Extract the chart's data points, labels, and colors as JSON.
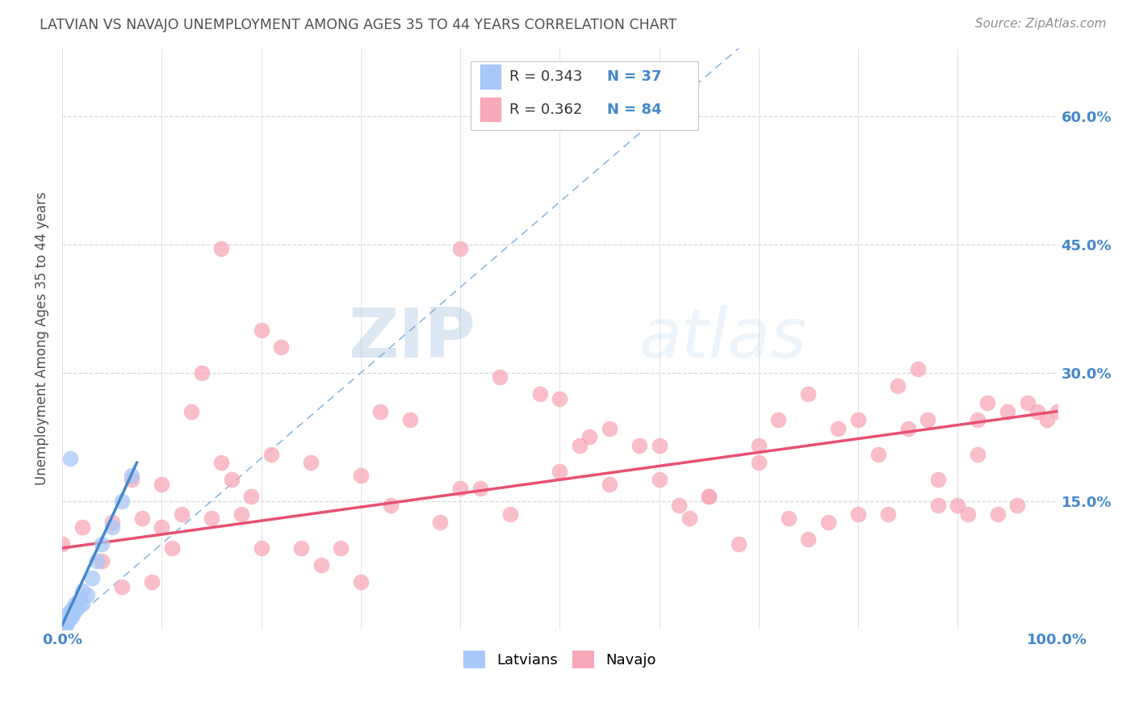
{
  "title": "LATVIAN VS NAVAJO UNEMPLOYMENT AMONG AGES 35 TO 44 YEARS CORRELATION CHART",
  "source": "Source: ZipAtlas.com",
  "ylabel": "Unemployment Among Ages 35 to 44 years",
  "xlim": [
    0,
    1.0
  ],
  "ylim": [
    0,
    0.68
  ],
  "xtick_positions": [
    0.0,
    0.1,
    0.2,
    0.3,
    0.4,
    0.5,
    0.6,
    0.7,
    0.8,
    0.9,
    1.0
  ],
  "ytick_positions": [
    0.0,
    0.15,
    0.3,
    0.45,
    0.6
  ],
  "latvian_R": 0.343,
  "latvian_N": 37,
  "navajo_R": 0.362,
  "navajo_N": 84,
  "latvian_color": "#a8c8f8",
  "navajo_color": "#f8a8b8",
  "latvian_line_color": "#4488cc",
  "navajo_line_color": "#e85070",
  "diag_color": "#b8c8e0",
  "legend_latvian_label": "Latvians",
  "legend_navajo_label": "Navajo",
  "watermark_zip": "ZIP",
  "watermark_atlas": "atlas",
  "background_color": "#ffffff",
  "grid_color": "#d8d8d8",
  "title_color": "#505050",
  "ylabel_color": "#505050",
  "tick_label_color": "#4488cc",
  "latvian_scatter_x": [
    0.0,
    0.0,
    0.0,
    0.001,
    0.001,
    0.002,
    0.002,
    0.003,
    0.003,
    0.004,
    0.004,
    0.005,
    0.005,
    0.005,
    0.006,
    0.006,
    0.007,
    0.008,
    0.009,
    0.01,
    0.01,
    0.011,
    0.012,
    0.013,
    0.015,
    0.018,
    0.02,
    0.025,
    0.03,
    0.035,
    0.04,
    0.05,
    0.06,
    0.07,
    0.02,
    0.008,
    0.003
  ],
  "latvian_scatter_y": [
    0.0,
    0.003,
    0.006,
    0.002,
    0.008,
    0.004,
    0.01,
    0.005,
    0.012,
    0.006,
    0.015,
    0.008,
    0.012,
    0.018,
    0.01,
    0.016,
    0.012,
    0.018,
    0.022,
    0.015,
    0.022,
    0.025,
    0.02,
    0.03,
    0.025,
    0.035,
    0.03,
    0.04,
    0.06,
    0.08,
    0.1,
    0.12,
    0.15,
    0.18,
    0.045,
    0.2,
    0.008
  ],
  "navajo_scatter_x": [
    0.0,
    0.02,
    0.04,
    0.06,
    0.07,
    0.08,
    0.09,
    0.1,
    0.11,
    0.12,
    0.14,
    0.15,
    0.17,
    0.18,
    0.19,
    0.2,
    0.22,
    0.24,
    0.25,
    0.26,
    0.28,
    0.3,
    0.33,
    0.35,
    0.38,
    0.4,
    0.42,
    0.45,
    0.48,
    0.5,
    0.52,
    0.55,
    0.58,
    0.6,
    0.62,
    0.65,
    0.68,
    0.7,
    0.72,
    0.75,
    0.77,
    0.78,
    0.8,
    0.82,
    0.83,
    0.85,
    0.86,
    0.87,
    0.88,
    0.9,
    0.91,
    0.92,
    0.93,
    0.94,
    0.95,
    0.96,
    0.97,
    0.98,
    0.99,
    1.0,
    0.05,
    0.13,
    0.16,
    0.21,
    0.32,
    0.44,
    0.53,
    0.63,
    0.73,
    0.84,
    0.5,
    0.6,
    0.7,
    0.8,
    0.1,
    0.2,
    0.3,
    0.55,
    0.65,
    0.75,
    0.88,
    0.92,
    0.4,
    0.16
  ],
  "navajo_scatter_y": [
    0.1,
    0.12,
    0.08,
    0.05,
    0.175,
    0.13,
    0.055,
    0.12,
    0.095,
    0.135,
    0.3,
    0.13,
    0.175,
    0.135,
    0.155,
    0.35,
    0.33,
    0.095,
    0.195,
    0.075,
    0.095,
    0.18,
    0.145,
    0.245,
    0.125,
    0.165,
    0.165,
    0.135,
    0.275,
    0.27,
    0.215,
    0.235,
    0.215,
    0.175,
    0.145,
    0.155,
    0.1,
    0.215,
    0.245,
    0.275,
    0.125,
    0.235,
    0.245,
    0.205,
    0.135,
    0.235,
    0.305,
    0.245,
    0.145,
    0.145,
    0.135,
    0.245,
    0.265,
    0.135,
    0.255,
    0.145,
    0.265,
    0.255,
    0.245,
    0.255,
    0.125,
    0.255,
    0.195,
    0.205,
    0.255,
    0.295,
    0.225,
    0.13,
    0.13,
    0.285,
    0.185,
    0.215,
    0.195,
    0.135,
    0.17,
    0.095,
    0.055,
    0.17,
    0.155,
    0.105,
    0.175,
    0.205,
    0.445,
    0.445
  ]
}
